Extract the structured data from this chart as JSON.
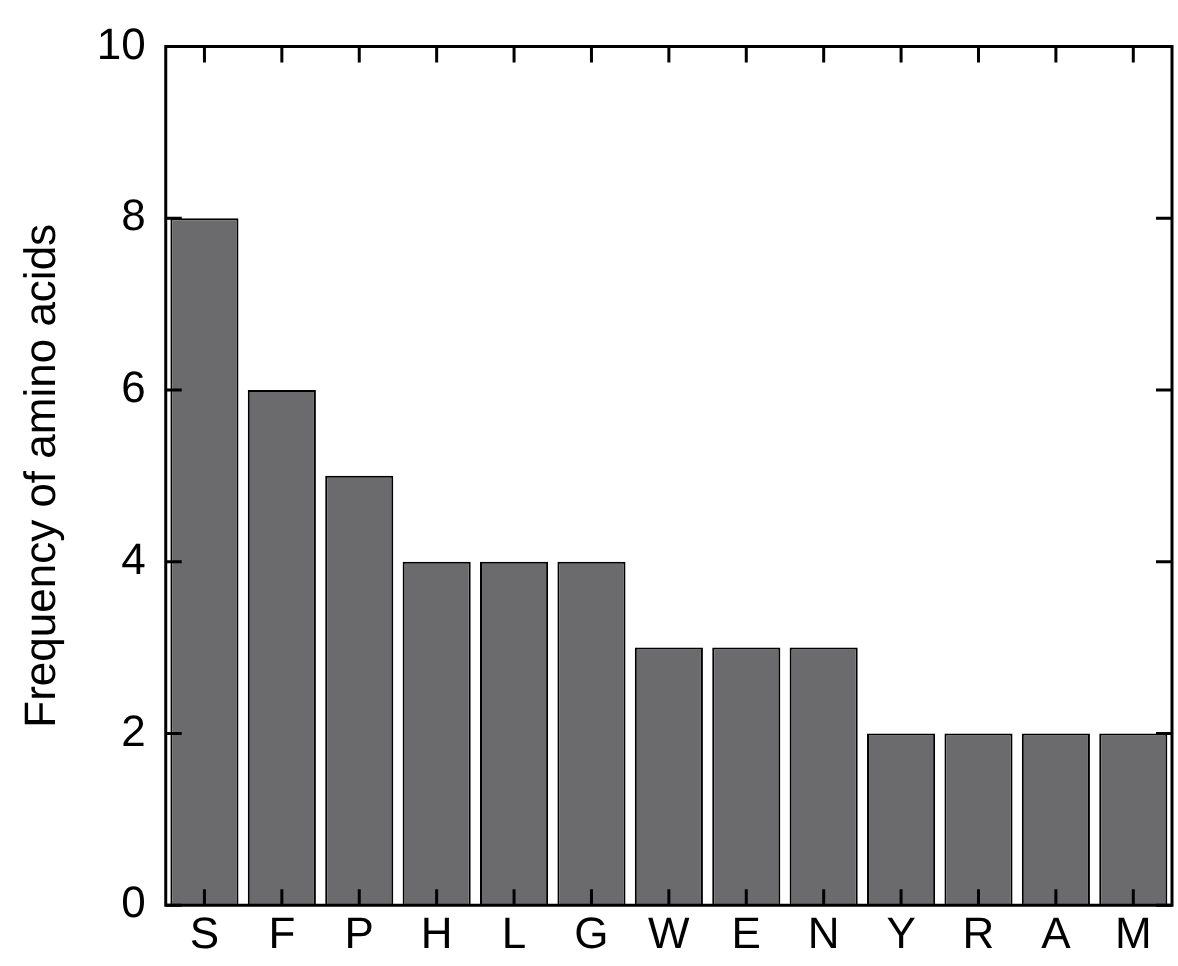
{
  "chart_data": {
    "type": "bar",
    "ylabel": "Frequency of amino acids",
    "categories": [
      "S",
      "F",
      "P",
      "H",
      "L",
      "G",
      "W",
      "E",
      "N",
      "Y",
      "R",
      "A",
      "M"
    ],
    "values": [
      8,
      6,
      5,
      4,
      4,
      4,
      3,
      3,
      3,
      2,
      2,
      2,
      2
    ],
    "color": "#6b6b6e",
    "ylim": [
      0,
      10
    ],
    "yticks": [
      0,
      2,
      4,
      6,
      8,
      10
    ],
    "grid": false,
    "legend": false
  }
}
